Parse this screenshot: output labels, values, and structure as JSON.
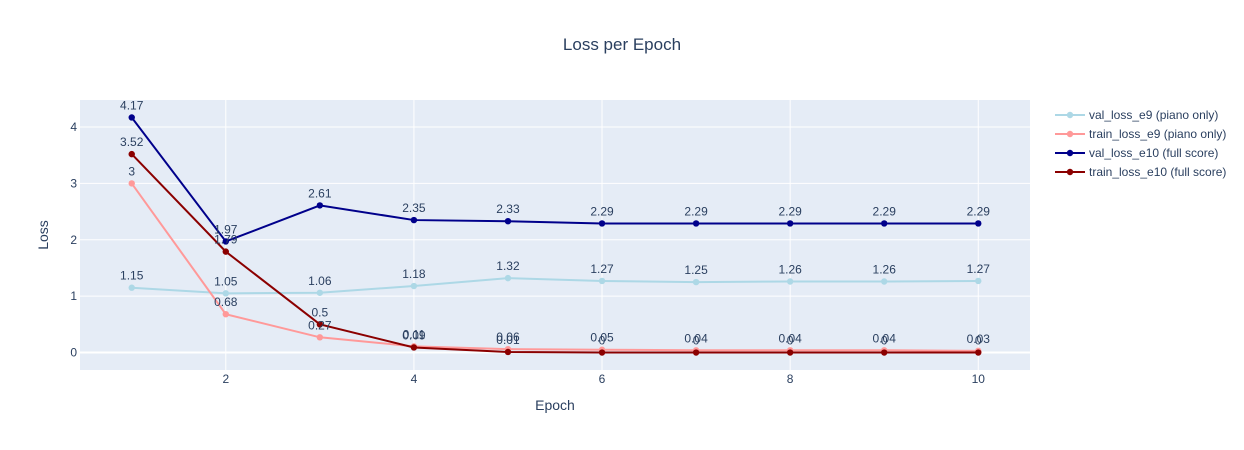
{
  "chart_data": {
    "type": "line",
    "title": "Loss per Epoch",
    "xlabel": "Epoch",
    "ylabel": "Loss",
    "xlim": [
      0.45,
      10.55
    ],
    "ylim": [
      -0.31,
      4.48
    ],
    "x_ticks": [
      "2",
      "4",
      "6",
      "8",
      "10"
    ],
    "y_ticks": [
      "0",
      "1",
      "2",
      "3",
      "4"
    ],
    "grid": true,
    "legend_position": "right",
    "x": [
      1,
      2,
      3,
      4,
      5,
      6,
      7,
      8,
      9,
      10
    ],
    "series": [
      {
        "name": "val_loss_e9 (piano only)",
        "color": "#add8e6",
        "values": [
          1.15,
          1.05,
          1.06,
          1.18,
          1.32,
          1.27,
          1.25,
          1.26,
          1.26,
          1.27
        ],
        "labels": [
          "1.15",
          "1.05",
          "1.06",
          "1.18",
          "1.32",
          "1.27",
          "1.25",
          "1.26",
          "1.26",
          "1.27"
        ]
      },
      {
        "name": "train_loss_e9 (piano only)",
        "color": "#ff9999",
        "values": [
          3.0,
          0.68,
          0.27,
          0.11,
          0.06,
          0.05,
          0.04,
          0.04,
          0.04,
          0.03
        ],
        "labels": [
          "3",
          "0.68",
          "0.27",
          "0.11",
          "0.06",
          "0.05",
          "0.04",
          "0.04",
          "0.04",
          "0.03"
        ]
      },
      {
        "name": "val_loss_e10 (full score)",
        "color": "#00008b",
        "values": [
          4.17,
          1.97,
          2.61,
          2.35,
          2.33,
          2.29,
          2.29,
          2.29,
          2.29,
          2.29
        ],
        "labels": [
          "4.17",
          "1.97",
          "2.61",
          "2.35",
          "2.33",
          "2.29",
          "2.29",
          "2.29",
          "2.29",
          "2.29"
        ]
      },
      {
        "name": "train_loss_e10 (full score)",
        "color": "#8b0000",
        "values": [
          3.52,
          1.79,
          0.5,
          0.09,
          0.01,
          0.0,
          0.0,
          0.0,
          0.0,
          0.0
        ],
        "labels": [
          "3.52",
          "1.79",
          "0.5",
          "0.09",
          "0.01",
          "0",
          "0",
          "0",
          "0",
          "0"
        ]
      }
    ]
  }
}
